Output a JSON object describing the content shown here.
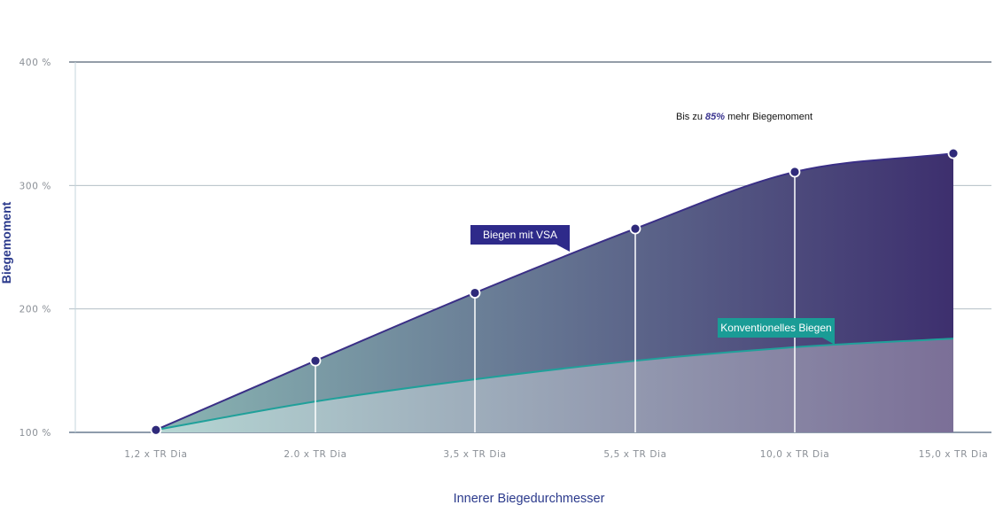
{
  "colors": {
    "vsa_dark": "#3d2f6e",
    "vsa_light": "#8ab6b3",
    "vsa_line": "#3a2f86",
    "conv_light": "#b5d6d3",
    "conv_dark": "#7b6f97",
    "conv_line": "#20a09a",
    "marker": "#2f2a7a",
    "grid": "#a9b5bd",
    "axis": "#1e3a5a",
    "tag_vsa": "#2e2a8a",
    "tag_conv": "#1a9c96"
  },
  "chart_data": {
    "type": "area",
    "ylabel": "Biegemoment",
    "xlabel": "Innerer Biegedurchmesser",
    "categories": [
      "1,2 x TR Dia",
      "2.0 x TR Dia",
      "3,5 x TR Dia",
      "5,5 x TR Dia",
      "10,0 x TR Dia",
      "15,0 x TR Dia"
    ],
    "y_ticks": [
      "100 %",
      "200 %",
      "300 %",
      "400 %"
    ],
    "y_tick_values": [
      100,
      200,
      300,
      400
    ],
    "ylim": [
      100,
      400
    ],
    "grid": true,
    "series": [
      {
        "name": "Biegen mit VSA",
        "values": [
          102,
          158,
          213,
          265,
          311,
          326
        ]
      },
      {
        "name": "Konventionelles Biegen",
        "values": [
          102,
          125,
          143,
          158,
          169,
          176
        ]
      }
    ],
    "annotation": {
      "prefix": "Bis zu ",
      "emphasis": "85%",
      "suffix": " mehr Biegemoment"
    }
  }
}
